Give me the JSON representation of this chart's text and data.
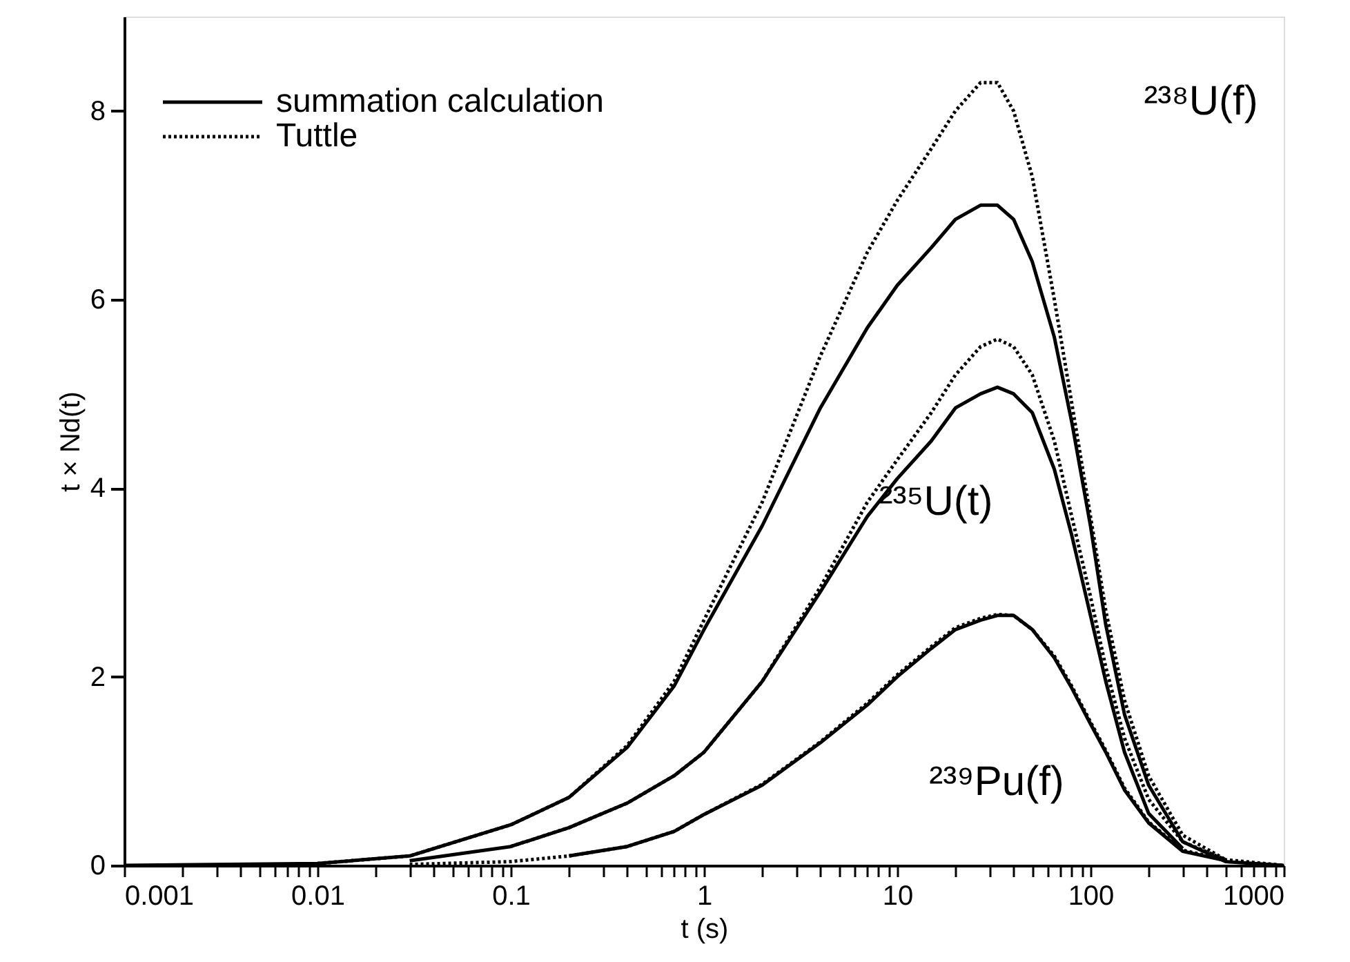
{
  "chart_data": {
    "type": "line",
    "xlabel": "t (s)",
    "ylabel": "t × Nd(t)",
    "log": "x",
    "xlim": [
      0.001,
      1000
    ],
    "ylim": [
      0,
      9
    ],
    "xticks": [
      0.001,
      {
        "value": 0.002,
        "label": null
      },
      {
        "value": 0.003,
        "label": null
      },
      {
        "value": 0.004,
        "label": null
      },
      {
        "value": 0.005,
        "label": null
      },
      {
        "value": 0.006,
        "label": null
      },
      {
        "value": 0.007,
        "label": null
      },
      {
        "value": 0.008,
        "label": null
      },
      {
        "value": 0.009,
        "label": null
      },
      0.01,
      {
        "value": 0.02,
        "label": null
      },
      {
        "value": 0.03,
        "label": null
      },
      {
        "value": 0.04,
        "label": null
      },
      {
        "value": 0.05,
        "label": null
      },
      {
        "value": 0.06,
        "label": null
      },
      {
        "value": 0.07,
        "label": null
      },
      {
        "value": 0.08,
        "label": null
      },
      {
        "value": 0.09,
        "label": null
      },
      0.1,
      {
        "value": 0.2,
        "label": null
      },
      {
        "value": 0.3,
        "label": null
      },
      {
        "value": 0.4,
        "label": null
      },
      {
        "value": 0.5,
        "label": null
      },
      {
        "value": 0.6,
        "label": null
      },
      {
        "value": 0.7,
        "label": null
      },
      {
        "value": 0.8,
        "label": null
      },
      {
        "value": 0.9,
        "label": null
      },
      1,
      {
        "value": 2,
        "label": null
      },
      {
        "value": 3,
        "label": null
      },
      {
        "value": 4,
        "label": null
      },
      {
        "value": 5,
        "label": null
      },
      {
        "value": 6,
        "label": null
      },
      {
        "value": 7,
        "label": null
      },
      {
        "value": 8,
        "label": null
      },
      {
        "value": 9,
        "label": null
      },
      10,
      {
        "value": 20,
        "label": null
      },
      {
        "value": 30,
        "label": null
      },
      {
        "value": 40,
        "label": null
      },
      {
        "value": 50,
        "label": null
      },
      {
        "value": 60,
        "label": null
      },
      {
        "value": 70,
        "label": null
      },
      {
        "value": 80,
        "label": null
      },
      {
        "value": 90,
        "label": null
      },
      100,
      {
        "value": 200,
        "label": null
      },
      {
        "value": 300,
        "label": null
      },
      {
        "value": 400,
        "label": null
      },
      {
        "value": 500,
        "label": null
      },
      {
        "value": 600,
        "label": null
      },
      {
        "value": 700,
        "label": null
      },
      {
        "value": 800,
        "label": null
      },
      {
        "value": 900,
        "label": null
      },
      1000
    ],
    "yticks": [
      0,
      2,
      4,
      6,
      8
    ],
    "grid": false,
    "legend": "top left",
    "marker": "none",
    "x": [
      0.001,
      0.01,
      0.03,
      0.1,
      0.2,
      0.4,
      0.7,
      1,
      2,
      4,
      7,
      10,
      15,
      20,
      27,
      33,
      40,
      50,
      65,
      80,
      100,
      120,
      150,
      200,
      300,
      500,
      1000
    ],
    "series": [
      {
        "name": "summation calculation",
        "color": "#000000",
        "line_style": "solid",
        "values": [
          0,
          0.02,
          0.1,
          0.43,
          0.72,
          1.25,
          1.9,
          2.5,
          3.6,
          4.85,
          5.7,
          6.15,
          6.55,
          6.85,
          7.0,
          7.0,
          6.85,
          6.4,
          5.6,
          4.7,
          3.6,
          2.55,
          1.6,
          0.85,
          0.25,
          0.04,
          0
        ]
      },
      {
        "name": "Tuttle",
        "color": "#000000",
        "line_style": "dotted",
        "x": [
          0.01,
          0.03,
          0.1,
          0.2,
          0.4,
          0.7,
          1,
          2,
          4,
          7,
          10,
          15,
          20,
          27,
          33,
          40,
          50,
          65,
          80,
          100,
          120,
          150,
          200,
          300,
          500
        ],
        "values": [
          0.02,
          0.1,
          0.43,
          0.72,
          1.27,
          1.95,
          2.6,
          3.85,
          5.4,
          6.5,
          7.05,
          7.6,
          8.0,
          8.3,
          8.3,
          8.0,
          7.3,
          6.0,
          4.9,
          3.7,
          2.7,
          1.75,
          0.95,
          0.32,
          0.06
        ]
      },
      {
        "color": "#000000",
        "line_style": "solid",
        "x": [
          0.03,
          0.1,
          0.2,
          0.4,
          0.7,
          1,
          2,
          4,
          7,
          10,
          15,
          20,
          27,
          33,
          40,
          50,
          65,
          80,
          100,
          120,
          150,
          200,
          300
        ],
        "values": [
          0.05,
          0.2,
          0.4,
          0.66,
          0.95,
          1.2,
          1.95,
          2.9,
          3.7,
          4.1,
          4.5,
          4.85,
          5.0,
          5.07,
          5.0,
          4.8,
          4.2,
          3.5,
          2.65,
          1.95,
          1.2,
          0.55,
          0.18
        ]
      },
      {
        "color": "#000000",
        "line_style": "dotted",
        "x": [
          0.1,
          0.2,
          0.4,
          0.7,
          1,
          2,
          4,
          7,
          10,
          15,
          20,
          27,
          33,
          40,
          50,
          65,
          80,
          100,
          120,
          150,
          200,
          300,
          500,
          1000
        ],
        "values": [
          0.2,
          0.4,
          0.66,
          0.95,
          1.2,
          1.95,
          2.95,
          3.85,
          4.3,
          4.8,
          5.2,
          5.5,
          5.58,
          5.5,
          5.2,
          4.5,
          3.7,
          2.85,
          2.1,
          1.35,
          0.7,
          0.25,
          0.06,
          0
        ]
      },
      {
        "color": "#000000",
        "line_style": "solid",
        "x": [
          0.2,
          0.4,
          0.7,
          1,
          2,
          4,
          7,
          10,
          15,
          20,
          27,
          33,
          40,
          50,
          65,
          80,
          100,
          120,
          150,
          200,
          300,
          500
        ],
        "values": [
          0.1,
          0.2,
          0.36,
          0.54,
          0.85,
          1.3,
          1.7,
          2.0,
          2.3,
          2.5,
          2.6,
          2.65,
          2.65,
          2.5,
          2.2,
          1.88,
          1.5,
          1.2,
          0.8,
          0.45,
          0.15,
          0.05
        ]
      },
      {
        "color": "#000000",
        "line_style": "dotted",
        "x": [
          0.03,
          0.1,
          0.2,
          0.4,
          0.7,
          1,
          2,
          4,
          7,
          10,
          15,
          20,
          27,
          33,
          40,
          50,
          65,
          80,
          100,
          120,
          150,
          200,
          300,
          500
        ],
        "values": [
          0.01,
          0.04,
          0.1,
          0.2,
          0.36,
          0.54,
          0.86,
          1.31,
          1.72,
          2.02,
          2.32,
          2.52,
          2.62,
          2.66,
          2.65,
          2.5,
          2.22,
          1.9,
          1.52,
          1.22,
          0.82,
          0.46,
          0.16,
          0.06
        ]
      }
    ],
    "annotations": [
      "²³⁸U(f)",
      "²³⁵U(t)",
      "²³⁹Pu(f)"
    ]
  }
}
